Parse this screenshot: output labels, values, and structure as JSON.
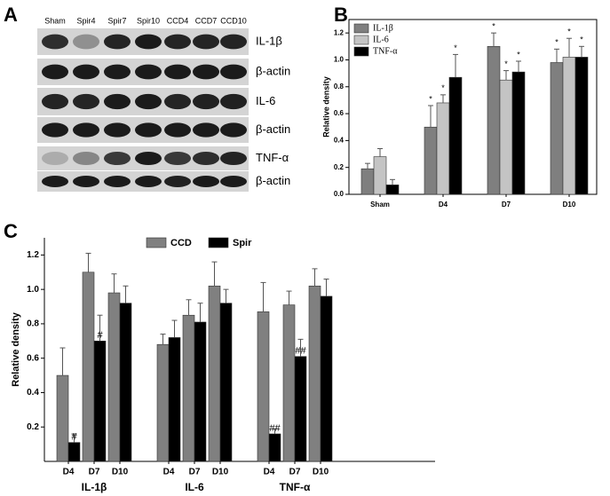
{
  "panel_a": {
    "label": "A",
    "lanes": [
      "Sham",
      "Spir4",
      "Spir7",
      "Spir10",
      "CCD4",
      "CCD7",
      "CCD10"
    ],
    "rows": [
      "IL-1β",
      "β-actin",
      "IL-6",
      "β-actin",
      "TNF-α",
      "β-actin"
    ]
  },
  "chart_data": [
    {
      "type": "bar",
      "panel_label": "B",
      "y_label": "Relative density",
      "categories": [
        "Sham",
        "D4",
        "D7",
        "D10"
      ],
      "series": [
        {
          "name": "IL-1β",
          "color": "#7f7f7f",
          "values": [
            0.19,
            0.5,
            1.1,
            0.98
          ],
          "errors": [
            0.04,
            0.16,
            0.1,
            0.1
          ],
          "annotations": [
            null,
            "*",
            "*",
            "*"
          ]
        },
        {
          "name": "IL-6",
          "color": "#c4c4c4",
          "values": [
            0.28,
            0.68,
            0.85,
            1.02
          ],
          "errors": [
            0.06,
            0.06,
            0.07,
            0.14
          ],
          "annotations": [
            null,
            "*",
            "*",
            "*"
          ]
        },
        {
          "name": "TNF-α",
          "color": "#000000",
          "values": [
            0.07,
            0.87,
            0.91,
            1.02
          ],
          "errors": [
            0.04,
            0.17,
            0.08,
            0.08
          ],
          "annotations": [
            null,
            "*",
            "*",
            "*"
          ]
        }
      ],
      "ylim": [
        0,
        1.3
      ],
      "yticks": [
        {
          "value": 0,
          "label": "0.0"
        },
        {
          "value": 0.2,
          "label": "0.2"
        },
        {
          "value": 0.4,
          "label": "0.4"
        },
        {
          "value": 0.6,
          "label": "0.6"
        },
        {
          "value": 0.8,
          "label": "0.8"
        },
        {
          "value": 1.0,
          "label": "1.0"
        },
        {
          "value": 1.2,
          "label": "1.2"
        }
      ],
      "legend": "top-left"
    },
    {
      "type": "bar",
      "panel_label": "C",
      "y_label": "Relative density",
      "categories": [
        "D4",
        "D7",
        "D10",
        "D4",
        "D7",
        "D10",
        "D4",
        "D7",
        "D10"
      ],
      "category_groups": [
        "IL-1β",
        "IL-6",
        "TNF-α"
      ],
      "series": [
        {
          "name": "CCD",
          "color": "#808080",
          "values": [
            0.5,
            1.1,
            0.98,
            0.68,
            0.85,
            1.02,
            0.87,
            0.91,
            1.02
          ],
          "errors": [
            0.16,
            0.11,
            0.11,
            0.06,
            0.09,
            0.14,
            0.17,
            0.08,
            0.1
          ],
          "annotations": [
            null,
            null,
            null,
            null,
            null,
            null,
            null,
            null,
            null
          ]
        },
        {
          "name": "Spir",
          "color": "#000000",
          "values": [
            0.11,
            0.7,
            0.92,
            0.72,
            0.81,
            0.92,
            0.16,
            0.61,
            0.96
          ],
          "errors": [
            0.05,
            0.15,
            0.1,
            0.1,
            0.11,
            0.08,
            0.03,
            0.1,
            0.1
          ],
          "annotations": [
            "#",
            "#",
            null,
            null,
            null,
            null,
            "##",
            "##",
            null
          ]
        }
      ],
      "ylim": [
        0,
        1.3
      ],
      "yticks": [
        {
          "value": 0.2,
          "label": "0.2"
        },
        {
          "value": 0.4,
          "label": "0.4"
        },
        {
          "value": 0.6,
          "label": "0.6"
        },
        {
          "value": 0.8,
          "label": "0.8"
        },
        {
          "value": 1.0,
          "label": "1.0"
        },
        {
          "value": 1.2,
          "label": "1.2"
        }
      ],
      "legend": "top"
    }
  ]
}
